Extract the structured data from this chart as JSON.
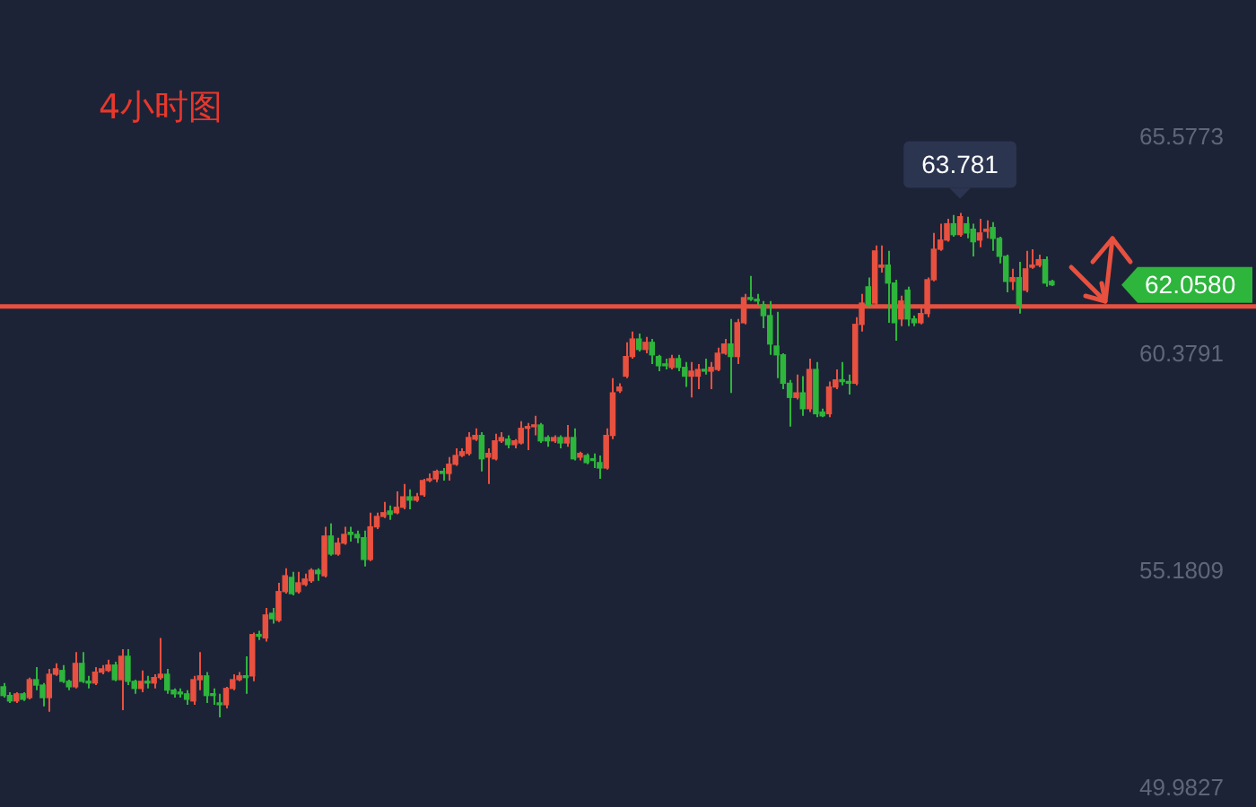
{
  "chart_data": {
    "type": "candlestick",
    "title": "4小时图",
    "categories": [
      null,
      null,
      null,
      null,
      null,
      null,
      null,
      null,
      null,
      null,
      null,
      null,
      null,
      null,
      null,
      null,
      null,
      null,
      null,
      null,
      null,
      null,
      null,
      null,
      null,
      null,
      null,
      null,
      null,
      null,
      null,
      null,
      null,
      null,
      null,
      null,
      null,
      null,
      null,
      null,
      null,
      null,
      null,
      null,
      null,
      null,
      null,
      null,
      null,
      null,
      null,
      null,
      null,
      null,
      null,
      null,
      null,
      null,
      null,
      null,
      null,
      null,
      null,
      null,
      null,
      null,
      null,
      null,
      null,
      null,
      null,
      null,
      null,
      null,
      null,
      null,
      null,
      null,
      null,
      null,
      null,
      null,
      null,
      null,
      null,
      null,
      null,
      null,
      null,
      null,
      null,
      null,
      null,
      null,
      null,
      null,
      null,
      null,
      null,
      null,
      null,
      null,
      null,
      null,
      null,
      null,
      null,
      null,
      null,
      null,
      null,
      null,
      null,
      null,
      null,
      null,
      null,
      null,
      null,
      null,
      null,
      null,
      null,
      null,
      null,
      null,
      null,
      null,
      null,
      null,
      null,
      null,
      null,
      null,
      null,
      null,
      null,
      null,
      null,
      null,
      null,
      null,
      null,
      null,
      null,
      null,
      null,
      null,
      null,
      null,
      null,
      null,
      null,
      null,
      null,
      null,
      null,
      null,
      null,
      null,
      null,
      null,
      null,
      null,
      null,
      null,
      null,
      null,
      null,
      null,
      null,
      null,
      null,
      null,
      null,
      null,
      null,
      null,
      null,
      null,
      null,
      null,
      null,
      null
    ],
    "ohlc": [
      [
        52.43,
        52.52,
        52.17,
        52.22
      ],
      [
        52.22,
        52.3,
        52.04,
        52.09
      ],
      [
        52.09,
        52.3,
        52.04,
        52.26
      ],
      [
        52.26,
        52.3,
        52.09,
        52.13
      ],
      [
        52.17,
        52.65,
        52.13,
        52.6
      ],
      [
        52.6,
        52.9,
        52.35,
        52.47
      ],
      [
        52.47,
        52.52,
        51.96,
        52.17
      ],
      [
        52.17,
        52.86,
        51.83,
        52.73
      ],
      [
        52.73,
        52.99,
        52.69,
        52.86
      ],
      [
        52.82,
        52.95,
        52.52,
        52.56
      ],
      [
        52.56,
        52.6,
        52.35,
        52.43
      ],
      [
        52.43,
        53.26,
        52.39,
        52.99
      ],
      [
        52.99,
        53.26,
        52.52,
        52.56
      ],
      [
        52.56,
        52.69,
        52.39,
        52.52
      ],
      [
        52.52,
        52.9,
        52.47,
        52.78
      ],
      [
        52.78,
        52.95,
        52.73,
        52.86
      ],
      [
        52.82,
        53.08,
        52.78,
        52.95
      ],
      [
        52.95,
        53.03,
        52.56,
        52.6
      ],
      [
        52.6,
        53.33,
        51.87,
        53.16
      ],
      [
        53.16,
        53.33,
        52.47,
        52.56
      ],
      [
        52.56,
        52.6,
        52.26,
        52.39
      ],
      [
        52.39,
        52.82,
        52.3,
        52.56
      ],
      [
        52.56,
        52.69,
        52.39,
        52.52
      ],
      [
        52.52,
        52.73,
        52.39,
        52.65
      ],
      [
        52.65,
        53.6,
        52.6,
        52.73
      ],
      [
        52.73,
        52.86,
        52.26,
        52.35
      ],
      [
        52.35,
        52.39,
        52.17,
        52.26
      ],
      [
        52.3,
        52.39,
        52.17,
        52.26
      ],
      [
        52.26,
        52.35,
        52.0,
        52.13
      ],
      [
        52.09,
        52.69,
        52.0,
        52.6
      ],
      [
        52.6,
        53.26,
        52.35,
        52.69
      ],
      [
        52.69,
        52.78,
        52.04,
        52.22
      ],
      [
        52.26,
        52.39,
        52.0,
        52.22
      ],
      [
        52.04,
        52.26,
        51.7,
        52.0
      ],
      [
        52.0,
        52.43,
        51.91,
        52.39
      ],
      [
        52.39,
        52.73,
        52.35,
        52.6
      ],
      [
        52.6,
        52.78,
        52.56,
        52.69
      ],
      [
        52.69,
        53.16,
        52.26,
        52.65
      ],
      [
        52.69,
        53.73,
        52.56,
        53.68
      ],
      [
        53.68,
        53.77,
        53.55,
        53.64
      ],
      [
        53.6,
        54.32,
        53.51,
        54.15
      ],
      [
        54.19,
        54.32,
        53.94,
        54.06
      ],
      [
        54.02,
        54.92,
        53.98,
        54.71
      ],
      [
        54.71,
        55.27,
        54.66,
        55.09
      ],
      [
        55.05,
        55.18,
        54.62,
        54.66
      ],
      [
        54.71,
        55.18,
        54.66,
        54.92
      ],
      [
        54.88,
        55.14,
        54.84,
        55.01
      ],
      [
        54.97,
        55.27,
        54.92,
        55.22
      ],
      [
        55.22,
        55.27,
        54.97,
        55.14
      ],
      [
        55.09,
        56.26,
        55.05,
        56.04
      ],
      [
        56.04,
        56.34,
        55.57,
        55.61
      ],
      [
        55.61,
        56.0,
        55.57,
        55.87
      ],
      [
        55.87,
        56.26,
        55.83,
        56.08
      ],
      [
        56.13,
        56.26,
        55.91,
        56.08
      ],
      [
        56.08,
        56.17,
        55.87,
        56.0
      ],
      [
        56.0,
        56.17,
        55.31,
        55.48
      ],
      [
        55.48,
        56.6,
        55.44,
        56.26
      ],
      [
        56.26,
        56.6,
        56.21,
        56.51
      ],
      [
        56.51,
        56.86,
        56.47,
        56.6
      ],
      [
        56.64,
        56.77,
        56.43,
        56.56
      ],
      [
        56.6,
        57.11,
        56.56,
        56.73
      ],
      [
        56.73,
        57.29,
        56.68,
        56.98
      ],
      [
        56.98,
        57.16,
        56.68,
        56.9
      ],
      [
        56.9,
        57.07,
        56.86,
        56.98
      ],
      [
        57.03,
        57.41,
        56.98,
        57.37
      ],
      [
        57.37,
        57.54,
        57.33,
        57.41
      ],
      [
        57.41,
        57.63,
        57.33,
        57.59
      ],
      [
        57.59,
        57.67,
        57.37,
        57.54
      ],
      [
        57.54,
        57.93,
        57.37,
        57.76
      ],
      [
        57.76,
        58.14,
        57.72,
        57.97
      ],
      [
        57.97,
        58.14,
        57.93,
        58.06
      ],
      [
        58.02,
        58.53,
        57.97,
        58.4
      ],
      [
        58.36,
        58.62,
        58.32,
        58.45
      ],
      [
        58.45,
        58.53,
        57.59,
        57.89
      ],
      [
        57.93,
        58.14,
        57.29,
        58.02
      ],
      [
        57.89,
        58.49,
        57.85,
        58.32
      ],
      [
        58.32,
        58.53,
        58.27,
        58.4
      ],
      [
        58.36,
        58.45,
        58.14,
        58.23
      ],
      [
        58.23,
        58.36,
        58.14,
        58.32
      ],
      [
        58.27,
        58.79,
        58.23,
        58.62
      ],
      [
        58.62,
        58.75,
        58.1,
        58.66
      ],
      [
        58.66,
        58.92,
        58.45,
        58.7
      ],
      [
        58.7,
        58.75,
        58.27,
        58.32
      ],
      [
        58.4,
        58.45,
        58.18,
        58.32
      ],
      [
        58.32,
        58.45,
        58.27,
        58.4
      ],
      [
        58.4,
        58.45,
        58.14,
        58.27
      ],
      [
        58.27,
        58.7,
        58.18,
        58.4
      ],
      [
        58.4,
        58.62,
        57.85,
        57.89
      ],
      [
        57.93,
        58.06,
        57.85,
        58.02
      ],
      [
        57.97,
        58.02,
        57.76,
        57.8
      ],
      [
        57.89,
        58.02,
        57.67,
        57.85
      ],
      [
        57.8,
        57.97,
        57.41,
        57.67
      ],
      [
        57.67,
        58.62,
        57.63,
        58.45
      ],
      [
        58.45,
        59.82,
        58.36,
        59.47
      ],
      [
        59.52,
        59.7,
        59.47,
        59.61
      ],
      [
        59.87,
        60.68,
        59.82,
        60.34
      ],
      [
        60.34,
        60.94,
        60.29,
        60.76
      ],
      [
        60.76,
        60.89,
        60.46,
        60.51
      ],
      [
        60.51,
        60.81,
        60.42,
        60.68
      ],
      [
        60.68,
        60.76,
        60.16,
        60.38
      ],
      [
        60.34,
        60.38,
        59.99,
        60.12
      ],
      [
        60.16,
        60.29,
        60.03,
        60.12
      ],
      [
        60.08,
        60.38,
        60.03,
        60.29
      ],
      [
        60.29,
        60.38,
        59.99,
        60.08
      ],
      [
        60.08,
        60.21,
        59.61,
        59.87
      ],
      [
        59.87,
        60.21,
        59.36,
        59.99
      ],
      [
        59.87,
        60.16,
        59.56,
        60.03
      ],
      [
        60.03,
        60.29,
        59.91,
        59.99
      ],
      [
        59.99,
        60.21,
        59.56,
        60.08
      ],
      [
        60.03,
        60.55,
        59.99,
        60.42
      ],
      [
        60.42,
        60.76,
        60.38,
        60.64
      ],
      [
        60.64,
        61.24,
        59.47,
        60.34
      ],
      [
        60.34,
        61.24,
        60.16,
        61.15
      ],
      [
        61.15,
        61.84,
        61.11,
        61.75
      ],
      [
        61.75,
        62.27,
        61.67,
        61.71
      ],
      [
        61.71,
        61.84,
        61.58,
        61.67
      ],
      [
        61.58,
        61.67,
        61.02,
        61.32
      ],
      [
        61.32,
        61.67,
        60.38,
        60.64
      ],
      [
        60.59,
        61.41,
        59.82,
        60.38
      ],
      [
        60.38,
        60.42,
        59.56,
        59.7
      ],
      [
        59.7,
        59.78,
        58.66,
        59.36
      ],
      [
        59.36,
        59.91,
        59.31,
        59.47
      ],
      [
        59.47,
        59.87,
        58.92,
        59.09
      ],
      [
        59.09,
        60.29,
        59.01,
        60.03
      ],
      [
        60.03,
        60.21,
        58.89,
        58.97
      ],
      [
        59.01,
        59.09,
        58.89,
        58.92
      ],
      [
        58.97,
        59.74,
        58.89,
        59.61
      ],
      [
        59.61,
        60.03,
        59.56,
        59.78
      ],
      [
        59.78,
        60.21,
        59.65,
        59.74
      ],
      [
        59.74,
        59.91,
        59.43,
        59.7
      ],
      [
        59.7,
        61.28,
        59.65,
        61.11
      ],
      [
        61.11,
        61.84,
        60.94,
        61.62
      ],
      [
        62.01,
        62.23,
        61.5,
        61.58
      ],
      [
        61.62,
        63.0,
        61.58,
        62.87
      ],
      [
        62.48,
        63.0,
        62.35,
        62.53
      ],
      [
        62.53,
        62.87,
        61.15,
        62.1
      ],
      [
        62.1,
        62.18,
        60.72,
        61.15
      ],
      [
        61.24,
        61.8,
        61.07,
        61.67
      ],
      [
        61.93,
        62.01,
        61.07,
        61.24
      ],
      [
        61.24,
        61.32,
        61.07,
        61.15
      ],
      [
        61.15,
        61.58,
        61.11,
        61.37
      ],
      [
        61.37,
        62.23,
        61.28,
        62.18
      ],
      [
        62.18,
        63.3,
        62.14,
        62.91
      ],
      [
        62.91,
        63.52,
        62.87,
        63.13
      ],
      [
        63.13,
        63.64,
        63.09,
        63.52
      ],
      [
        63.52,
        63.73,
        63.21,
        63.26
      ],
      [
        63.26,
        63.781,
        63.21,
        63.69
      ],
      [
        63.52,
        63.69,
        63.17,
        63.3
      ],
      [
        63.39,
        63.52,
        62.74,
        63.09
      ],
      [
        63.13,
        63.64,
        62.96,
        63.3
      ],
      [
        63.34,
        63.6,
        63.17,
        63.39
      ],
      [
        63.43,
        63.56,
        62.87,
        63.17
      ],
      [
        63.17,
        63.21,
        62.57,
        62.74
      ],
      [
        62.74,
        62.78,
        61.88,
        62.14
      ],
      [
        62.14,
        62.44,
        61.93,
        62.23
      ],
      [
        62.23,
        62.61,
        61.37,
        61.58
      ],
      [
        61.93,
        62.87,
        61.88,
        62.44
      ],
      [
        62.48,
        62.91,
        62.44,
        62.53
      ],
      [
        62.53,
        62.78,
        62.48,
        62.66
      ],
      [
        62.66,
        62.74,
        62.01,
        62.1
      ],
      [
        62.14,
        62.18,
        62.03,
        62.058
      ],
      null,
      null,
      null,
      null,
      null,
      null,
      null,
      null,
      null,
      null,
      null,
      null,
      null,
      null,
      null,
      null,
      null,
      null,
      null,
      null,
      null,
      null,
      null
    ],
    "colors": [
      "#2db53c",
      "#2db53c",
      "#e8503f",
      "#2db53c",
      "#e8503f",
      "#2db53c",
      "#2db53c",
      "#e8503f",
      "#e8503f",
      "#2db53c",
      "#2db53c",
      "#e8503f",
      "#2db53c",
      "#2db53c",
      "#e8503f",
      "#e8503f",
      "#e8503f",
      "#2db53c",
      "#e8503f",
      "#2db53c",
      "#2db53c",
      "#e8503f",
      "#2db53c",
      "#e8503f",
      "#e8503f",
      "#2db53c",
      "#2db53c",
      "#2db53c",
      "#2db53c",
      "#e8503f",
      "#e8503f",
      "#2db53c",
      "#2db53c",
      "#2db53c",
      "#e8503f",
      "#e8503f",
      "#e8503f",
      "#2db53c",
      "#e8503f",
      "#2db53c",
      "#e8503f",
      "#2db53c",
      "#e8503f",
      "#e8503f",
      "#2db53c",
      "#e8503f",
      "#e8503f",
      "#e8503f",
      "#2db53c",
      "#e8503f",
      "#2db53c",
      "#e8503f",
      "#e8503f",
      "#2db53c",
      "#2db53c",
      "#2db53c",
      "#e8503f",
      "#e8503f",
      "#e8503f",
      "#2db53c",
      "#e8503f",
      "#e8503f",
      "#2db53c",
      "#e8503f",
      "#e8503f",
      "#e8503f",
      "#e8503f",
      "#2db53c",
      "#e8503f",
      "#e8503f",
      "#e8503f",
      "#e8503f",
      "#e8503f",
      "#2db53c",
      "#e8503f",
      "#e8503f",
      "#e8503f",
      "#2db53c",
      "#e8503f",
      "#e8503f",
      "#e8503f",
      "#e8503f",
      "#2db53c",
      "#2db53c",
      "#e8503f",
      "#2db53c",
      "#e8503f",
      "#2db53c",
      "#e8503f",
      "#2db53c",
      "#2db53c",
      "#2db53c",
      "#e8503f",
      "#e8503f",
      "#e8503f",
      "#e8503f",
      "#e8503f",
      "#2db53c",
      "#e8503f",
      "#2db53c",
      "#2db53c",
      "#2db53c",
      "#e8503f",
      "#2db53c",
      "#2db53c",
      "#e8503f",
      "#e8503f",
      "#2db53c",
      "#e8503f",
      "#e8503f",
      "#e8503f",
      "#2db53c",
      "#e8503f",
      "#e8503f",
      "#2db53c",
      "#2db53c",
      "#2db53c",
      "#2db53c",
      "#2db53c",
      "#2db53c",
      "#2db53c",
      "#e8503f",
      "#2db53c",
      "#e8503f",
      "#2db53c",
      "#2db53c",
      "#e8503f",
      "#e8503f",
      "#2db53c",
      "#2db53c",
      "#e8503f",
      "#e8503f",
      "#2db53c",
      "#e8503f",
      "#e8503f",
      "#2db53c",
      "#2db53c",
      "#e8503f",
      "#2db53c",
      "#2db53c",
      "#e8503f",
      "#e8503f",
      "#e8503f",
      "#e8503f",
      "#e8503f",
      "#2db53c",
      "#e8503f",
      "#2db53c",
      "#2db53c",
      "#e8503f",
      "#e8503f",
      "#2db53c",
      "#2db53c",
      "#2db53c",
      "#e8503f",
      "#2db53c",
      "#e8503f",
      "#e8503f",
      "#e8503f",
      "#2db53c",
      "#2db53c",
      null,
      null,
      null,
      null,
      null,
      null,
      null,
      null,
      null,
      null,
      null,
      null,
      null,
      null,
      null,
      null,
      null,
      null,
      null,
      null,
      null,
      null,
      null
    ],
    "ylim": [
      49.55,
      68.88
    ],
    "yticks": [
      49.9827,
      55.1809,
      60.3791,
      65.5773
    ],
    "ref_lines": [
      {
        "axis": "y",
        "value": 61.54,
        "color": "#e8503f"
      }
    ],
    "annotations": [
      "63.781",
      "62.0580"
    ],
    "tick_labels": "y",
    "grid": false,
    "legend": false
  }
}
